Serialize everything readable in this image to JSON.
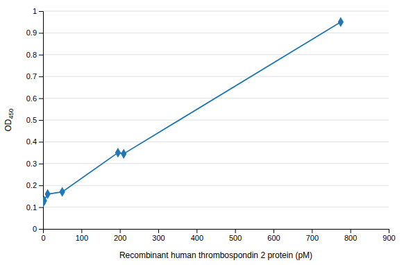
{
  "chart_data": {
    "type": "line",
    "xlabel": "Recombinant human thrombospondin 2 protein (pM)",
    "ylabel": "OD450",
    "x": [
      0,
      3,
      12,
      50,
      195,
      210,
      775
    ],
    "values": [
      0.12,
      0.13,
      0.16,
      0.17,
      0.35,
      0.345,
      0.95
    ],
    "marker": "diamond",
    "xlim": [
      0,
      900
    ],
    "ylim": [
      0,
      1
    ],
    "xticks": [
      0,
      100,
      200,
      300,
      400,
      500,
      600,
      700,
      800,
      900
    ],
    "yticks": [
      0,
      0.1,
      0.2,
      0.3,
      0.4,
      0.5,
      0.6,
      0.7,
      0.8,
      0.9,
      1
    ],
    "grid": true
  }
}
